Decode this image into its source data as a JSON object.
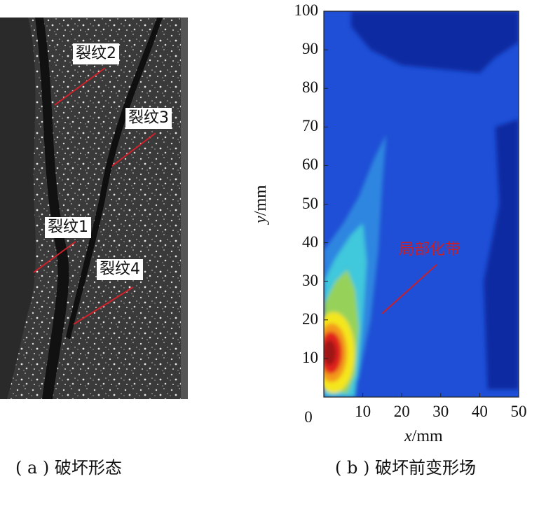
{
  "panel_a": {
    "labels": [
      "裂纹2",
      "裂纹3",
      "裂纹1",
      "裂纹4"
    ]
  },
  "panel_b": {
    "annotation": "局部化带"
  },
  "captions": {
    "a": "( a ) 破坏形态",
    "b": "( b ) 破坏前变形场"
  },
  "chart_data": {
    "type": "heatmap",
    "xlabel_var": "x",
    "xlabel_unit": "/mm",
    "ylabel_var": "y",
    "ylabel_unit": "/mm",
    "xlim": [
      0,
      50
    ],
    "ylim": [
      0,
      100
    ],
    "x_ticks": [
      "0",
      "10",
      "20",
      "30",
      "40",
      "50"
    ],
    "y_ticks": [
      "10",
      "20",
      "30",
      "40",
      "50",
      "60",
      "70",
      "80",
      "90",
      "100"
    ],
    "annotation": "局部化带",
    "colors": {
      "background": "#1f4fd6",
      "dark": "#0d2aa3",
      "light_blue": "#2f86e0",
      "cyan": "#40c8dc",
      "green": "#96d25a",
      "yellow": "#f4e61e",
      "orange": "#f39a1e",
      "red": "#e1201e",
      "dark_red": "#9e1212",
      "annotation": "#c8202a"
    }
  }
}
